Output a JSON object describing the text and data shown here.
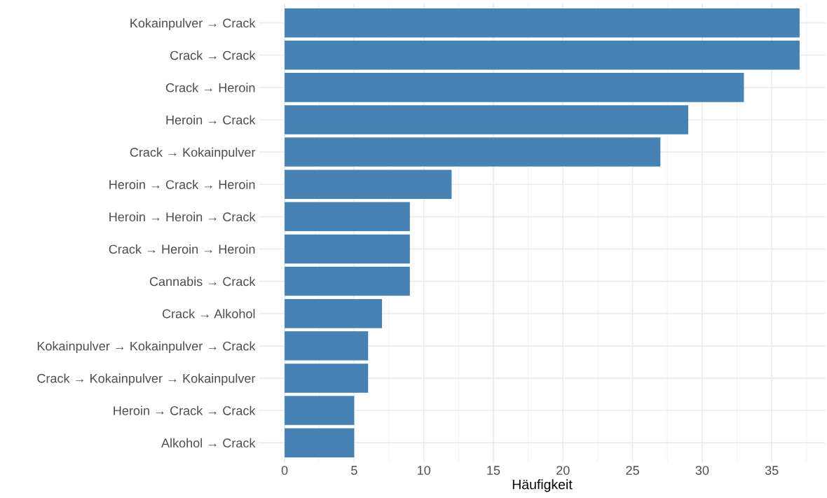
{
  "chart_data": {
    "type": "bar",
    "orientation": "horizontal",
    "xlabel": "Häufigkeit",
    "categories": [
      "Kokainpulver → Crack",
      "Crack → Crack",
      "Crack → Heroin",
      "Heroin → Crack",
      "Crack → Kokainpulver",
      "Heroin → Crack → Heroin",
      "Heroin → Heroin → Crack",
      "Crack → Heroin → Heroin",
      "Cannabis → Crack",
      "Crack → Alkohol",
      "Kokainpulver → Kokainpulver → Crack",
      "Crack → Kokainpulver → Kokainpulver",
      "Heroin → Crack → Crack",
      "Alkohol → Crack"
    ],
    "values": [
      37,
      37,
      33,
      29,
      27,
      12,
      9,
      9,
      9,
      7,
      6,
      6,
      5,
      5
    ],
    "color": "#4682b4",
    "xlim": [
      -1.85,
      38.85
    ],
    "xticks": [
      0,
      5,
      10,
      15,
      20,
      25,
      30,
      35
    ],
    "grid": true
  }
}
